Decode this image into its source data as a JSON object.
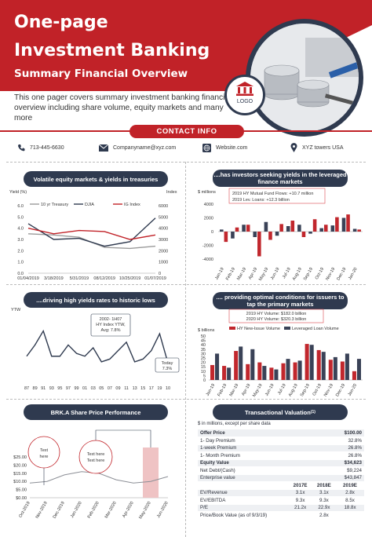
{
  "header": {
    "title_line1": "One-page",
    "title_line2": "Investment Banking",
    "subtitle": "Summary Financial Overview",
    "intro": "This one pager covers summary investment banking financial overview including share volume, equity markets and many more",
    "logo_label": "LOGO"
  },
  "contact": {
    "title": "CONTACT INFO",
    "phone": "713-445-6630",
    "email": "Companyname@xyz.com",
    "website": "Website.com",
    "address": "XYZ towers USA"
  },
  "colors": {
    "brand_red": "#c12228",
    "navy": "#2f3a4f",
    "bar_red": "#c1272d",
    "bar_navy": "#3a4257"
  },
  "panels": {
    "p1_title": "Volatile equity markets & yields in treasuries",
    "p2_title": "....has investors seeking yields in the leveraged finance markets",
    "p3_title": "....driving high yields rates to historic lows",
    "p4_title": ".... providing optimal conditions for issuers to tap the primary markets",
    "p5_title": "BRK.A  Share Price Performance",
    "p6_title": "Transactional Valuation",
    "p6_sup": "(1)"
  },
  "chart1": {
    "type": "line",
    "y_left_label": "Yield (%)",
    "y_right_label": "Index",
    "left_ticks": [
      "6.0",
      "5.0",
      "4.0",
      "3.0",
      "2.0",
      "1.0",
      "0.0"
    ],
    "right_ticks": [
      "6000",
      "5000",
      "4000",
      "3000",
      "2000",
      "1000",
      "0"
    ],
    "x_ticks": [
      "01/04/2019",
      "3/18/2019",
      "5/31/2019",
      "08/12/2019",
      "10/25/2019",
      "01/07/2019"
    ],
    "legend": [
      "10 yr Treasury",
      "DJIA",
      "IG Index"
    ],
    "series": [
      {
        "name": "10 yr Treasury",
        "color": "#9a9a9a",
        "values": [
          3.5,
          3.4,
          3.2,
          2.3,
          2.2,
          2.4
        ]
      },
      {
        "name": "DJIA",
        "color": "#2f3a4f",
        "values": [
          4.4,
          3.0,
          3.1,
          2.4,
          2.8,
          4.9
        ]
      },
      {
        "name": "IG Index",
        "color": "#c12228",
        "values": [
          4.0,
          3.5,
          3.8,
          3.7,
          3.0,
          3.4
        ]
      }
    ]
  },
  "chart2": {
    "type": "bar",
    "y_label": "$ millions",
    "y_ticks": [
      "4000",
      "2000",
      "0",
      "-2000",
      "-4000"
    ],
    "annotation_1": "2019 HY Mutual Fund Flows: +10.7 million",
    "annotation_2": "2019 Lev. Loans: +12.3 billion",
    "categories": [
      "Jan-19",
      "Feb-19",
      "Mar-19",
      "Apr-19",
      "May-19",
      "Jun-19",
      "Jul-19",
      "Aug-19",
      "Sep-19",
      "Oct-19",
      "Nov-19",
      "Dec-19",
      "Jan-20"
    ],
    "series": [
      {
        "name": "HY Mutual Fund Flows",
        "color": "#3a4257",
        "values": [
          300,
          -1000,
          1000,
          -800,
          1400,
          -600,
          800,
          1000,
          -300,
          500,
          900,
          2000,
          400
        ]
      },
      {
        "name": "Lev. Loans",
        "color": "#c1272d",
        "values": [
          -1500,
          600,
          1000,
          -3600,
          -1200,
          1100,
          1600,
          -800,
          1800,
          1000,
          2100,
          2500,
          300
        ]
      }
    ]
  },
  "chart3": {
    "type": "line",
    "y_label": "YTW",
    "y_ticks": [
      "16",
      "14",
      "12",
      "10",
      "8",
      "6",
      "4"
    ],
    "x_ticks": [
      "87",
      "89",
      "91",
      "93",
      "95",
      "97",
      "99",
      "01",
      "03",
      "05",
      "07",
      "09",
      "11",
      "13",
      "15",
      "17",
      "19",
      "10"
    ],
    "values": [
      8.5,
      10.5,
      13.0,
      8.5,
      8.5,
      10.5,
      9.0,
      8.5,
      10.0,
      7.5,
      8.0,
      9.5,
      11.0,
      7.5,
      8.0,
      9.5,
      12.5,
      7.3
    ],
    "callout_1": "2002- 1H07 HY Index YTW, Avg: 7.8%",
    "callout_2": "Today 7.3%"
  },
  "chart4": {
    "type": "bar",
    "y_label": "$ billions",
    "y_ticks": [
      "50",
      "45",
      "40",
      "35",
      "30",
      "25",
      "20",
      "15",
      "10",
      "5",
      "0"
    ],
    "annotation_1": "2019 HY Volume: $182.0 billion",
    "annotation_2": "2020 HY Volume: $320.3 billion",
    "legend": [
      "HY New-Issue Volume",
      "Leveraged Loan Volume"
    ],
    "categories": [
      "Jan-19",
      "Feb-19",
      "Mar-19",
      "Apr-19",
      "May-19",
      "Jun-19",
      "Jul-19",
      "Aug-19",
      "Sep-19",
      "Oct-19",
      "Nov-19",
      "Dec-19",
      "Jan-20"
    ],
    "series": [
      {
        "name": "HY New-Issue Volume",
        "color": "#c1272d",
        "values": [
          17,
          16,
          33,
          18,
          20,
          14,
          19,
          20,
          41,
          34,
          23,
          21,
          10
        ]
      },
      {
        "name": "Leveraged Loan Volume",
        "color": "#3a4257",
        "values": [
          30,
          14,
          38,
          35,
          16,
          12,
          24,
          22,
          40,
          32,
          26,
          30,
          24
        ]
      }
    ]
  },
  "chart5": {
    "type": "line",
    "y_ticks": [
      "$25.00",
      "$20.00",
      "$15.00",
      "$10.00",
      "$5.00",
      "$0.00"
    ],
    "x_ticks": [
      "Oct-2019",
      "Nov-2019",
      "Dec-2019",
      "Jan-2020",
      "Feb-2020",
      "Mar-2020",
      "Apr-2020",
      "May-2020",
      "Jun-2020"
    ],
    "values": [
      9,
      10,
      14,
      16,
      15,
      11,
      9,
      10,
      13
    ],
    "callout_1": "Text here",
    "callout_2": "Text here Text here"
  },
  "valuation": {
    "note": "$ in millions, except per share data",
    "rows": [
      {
        "label": "Offer Price",
        "value": "$100.00",
        "bold": true
      },
      {
        "label": "1- Day Premium",
        "value": "32.8%"
      },
      {
        "label": "1-week Premium",
        "value": "26.8%"
      },
      {
        "label": "1- Month Premium",
        "value": "26.8%"
      },
      {
        "label": "Equity Value",
        "value": "$34,623",
        "bold": true
      },
      {
        "label": "Net Debt/(Cash)",
        "value": "$9,224"
      },
      {
        "label": "Enterprise value",
        "value": "$43,847"
      }
    ],
    "years": [
      "2017E",
      "2018E",
      "2019E"
    ],
    "multiples": [
      {
        "label": "EV/Revenue",
        "v": [
          "3.1x",
          "3.1x",
          "2.8x"
        ]
      },
      {
        "label": "EV/EBITDA",
        "v": [
          "9.3x",
          "9.3x",
          "8.5x"
        ]
      },
      {
        "label": "P/E",
        "v": [
          "21.2x",
          "22.9x",
          "18.8x"
        ]
      },
      {
        "label": "Price/Book Value (as of 9/3/19)",
        "v": [
          "",
          "2.8x",
          ""
        ]
      }
    ]
  }
}
